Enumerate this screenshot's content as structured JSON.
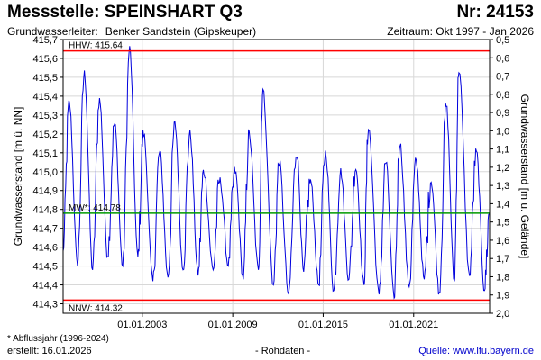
{
  "header": {
    "title": "Messstelle: SPEINSHART Q3",
    "number": "Nr: 24153",
    "aquifer_label": "Grundwasserleiter:",
    "aquifer_value": "Benker Sandstein (Gipskeuper)",
    "period": "Zeitraum: Okt 1997 - Jan 2026"
  },
  "footer": {
    "note": "* Abflussjahr (1996-2024)",
    "created": "erstellt:  16.01.2026",
    "raw_data": "- Rohdaten -",
    "source": "Quelle: www.lfu.bayern.de"
  },
  "colors": {
    "series": "#0000dd",
    "extreme_lines": "#ff0000",
    "mean_line": "#009900",
    "grid": "#d8d8d8",
    "source_link": "#0000cc"
  },
  "chart_data": {
    "type": "line",
    "ylabel": "Grundwasserstand [m ü. NN]",
    "y2label": "Grundwasserstand [m u. Gelände]",
    "ylim": [
      414.25,
      415.7
    ],
    "yticks": [
      "414,3",
      "414,4",
      "414,5",
      "414,6",
      "414,7",
      "414,8",
      "414,9",
      "415,0",
      "415,1",
      "415,2",
      "415,3",
      "415,4",
      "415,5",
      "415,6",
      "415,7"
    ],
    "y2lim": [
      0.5,
      2.0
    ],
    "y2ticks": [
      "0,5",
      "0,6",
      "0,7",
      "0,8",
      "0,9",
      "1,0",
      "1,1",
      "1,2",
      "1,3",
      "1,4",
      "1,5",
      "1,6",
      "1,7",
      "1,8",
      "1,9",
      "2,0"
    ],
    "xlim": [
      "1997-10-01",
      "2026-01-15"
    ],
    "xticks": [
      {
        "date": "2003-01-01",
        "label": "01.01.2003"
      },
      {
        "date": "2009-01-01",
        "label": "01.01.2009"
      },
      {
        "date": "2015-01-01",
        "label": "01.01.2015"
      },
      {
        "date": "2021-01-01",
        "label": "01.01.2021"
      }
    ],
    "grid": true,
    "reference_lines": [
      {
        "label": "HHW: 415.64",
        "value": 415.64,
        "kind": "extreme"
      },
      {
        "label": "MW*: 414.78",
        "value": 414.78,
        "kind": "mean"
      },
      {
        "label": "NNW: 414.32",
        "value": 414.32,
        "kind": "extreme"
      }
    ],
    "series": [
      {
        "annual_peaks": [
          {
            "date": "1998-03-01",
            "value": 415.36
          },
          {
            "date": "1999-03-01",
            "value": 415.52
          },
          {
            "date": "2000-03-01",
            "value": 415.38
          },
          {
            "date": "2001-03-01",
            "value": 415.25
          },
          {
            "date": "2002-03-01",
            "value": 415.65
          },
          {
            "date": "2003-02-01",
            "value": 415.2
          },
          {
            "date": "2004-03-01",
            "value": 415.1
          },
          {
            "date": "2005-03-01",
            "value": 415.25
          },
          {
            "date": "2006-03-01",
            "value": 415.2
          },
          {
            "date": "2007-02-01",
            "value": 415.0
          },
          {
            "date": "2008-03-01",
            "value": 414.95
          },
          {
            "date": "2009-03-01",
            "value": 415.0
          },
          {
            "date": "2010-02-01",
            "value": 415.2
          },
          {
            "date": "2011-01-01",
            "value": 415.43
          },
          {
            "date": "2012-02-01",
            "value": 415.05
          },
          {
            "date": "2013-04-01",
            "value": 415.1
          },
          {
            "date": "2014-03-01",
            "value": 414.95
          },
          {
            "date": "2015-03-01",
            "value": 415.1
          },
          {
            "date": "2016-03-01",
            "value": 415.0
          },
          {
            "date": "2017-03-01",
            "value": 415.02
          },
          {
            "date": "2018-01-01",
            "value": 415.23
          },
          {
            "date": "2019-03-01",
            "value": 415.05
          },
          {
            "date": "2020-02-01",
            "value": 415.15
          },
          {
            "date": "2021-03-01",
            "value": 415.05
          },
          {
            "date": "2022-03-01",
            "value": 414.95
          },
          {
            "date": "2023-03-01",
            "value": 415.35
          },
          {
            "date": "2024-01-01",
            "value": 415.54
          },
          {
            "date": "2025-03-01",
            "value": 415.1
          }
        ],
        "annual_lows": [
          {
            "date": "1998-09-15",
            "value": 414.5
          },
          {
            "date": "1999-09-15",
            "value": 414.48
          },
          {
            "date": "2000-09-15",
            "value": 414.55
          },
          {
            "date": "2001-09-15",
            "value": 414.5
          },
          {
            "date": "2002-09-15",
            "value": 414.55
          },
          {
            "date": "2003-09-15",
            "value": 414.42
          },
          {
            "date": "2004-09-15",
            "value": 414.44
          },
          {
            "date": "2005-09-15",
            "value": 414.48
          },
          {
            "date": "2006-09-15",
            "value": 414.45
          },
          {
            "date": "2007-09-15",
            "value": 414.48
          },
          {
            "date": "2008-09-15",
            "value": 414.5
          },
          {
            "date": "2009-09-15",
            "value": 414.43
          },
          {
            "date": "2010-09-15",
            "value": 414.48
          },
          {
            "date": "2011-09-15",
            "value": 414.4
          },
          {
            "date": "2012-09-15",
            "value": 414.35
          },
          {
            "date": "2013-09-15",
            "value": 414.47
          },
          {
            "date": "2014-09-15",
            "value": 414.4
          },
          {
            "date": "2015-09-15",
            "value": 414.37
          },
          {
            "date": "2016-09-15",
            "value": 414.43
          },
          {
            "date": "2017-09-15",
            "value": 414.4
          },
          {
            "date": "2018-09-15",
            "value": 414.35
          },
          {
            "date": "2019-09-15",
            "value": 414.33
          },
          {
            "date": "2020-09-15",
            "value": 414.39
          },
          {
            "date": "2021-09-15",
            "value": 414.43
          },
          {
            "date": "2022-09-15",
            "value": 414.36
          },
          {
            "date": "2023-09-15",
            "value": 414.42
          },
          {
            "date": "2024-09-15",
            "value": 414.45
          },
          {
            "date": "2025-09-15",
            "value": 414.37
          }
        ]
      }
    ]
  }
}
